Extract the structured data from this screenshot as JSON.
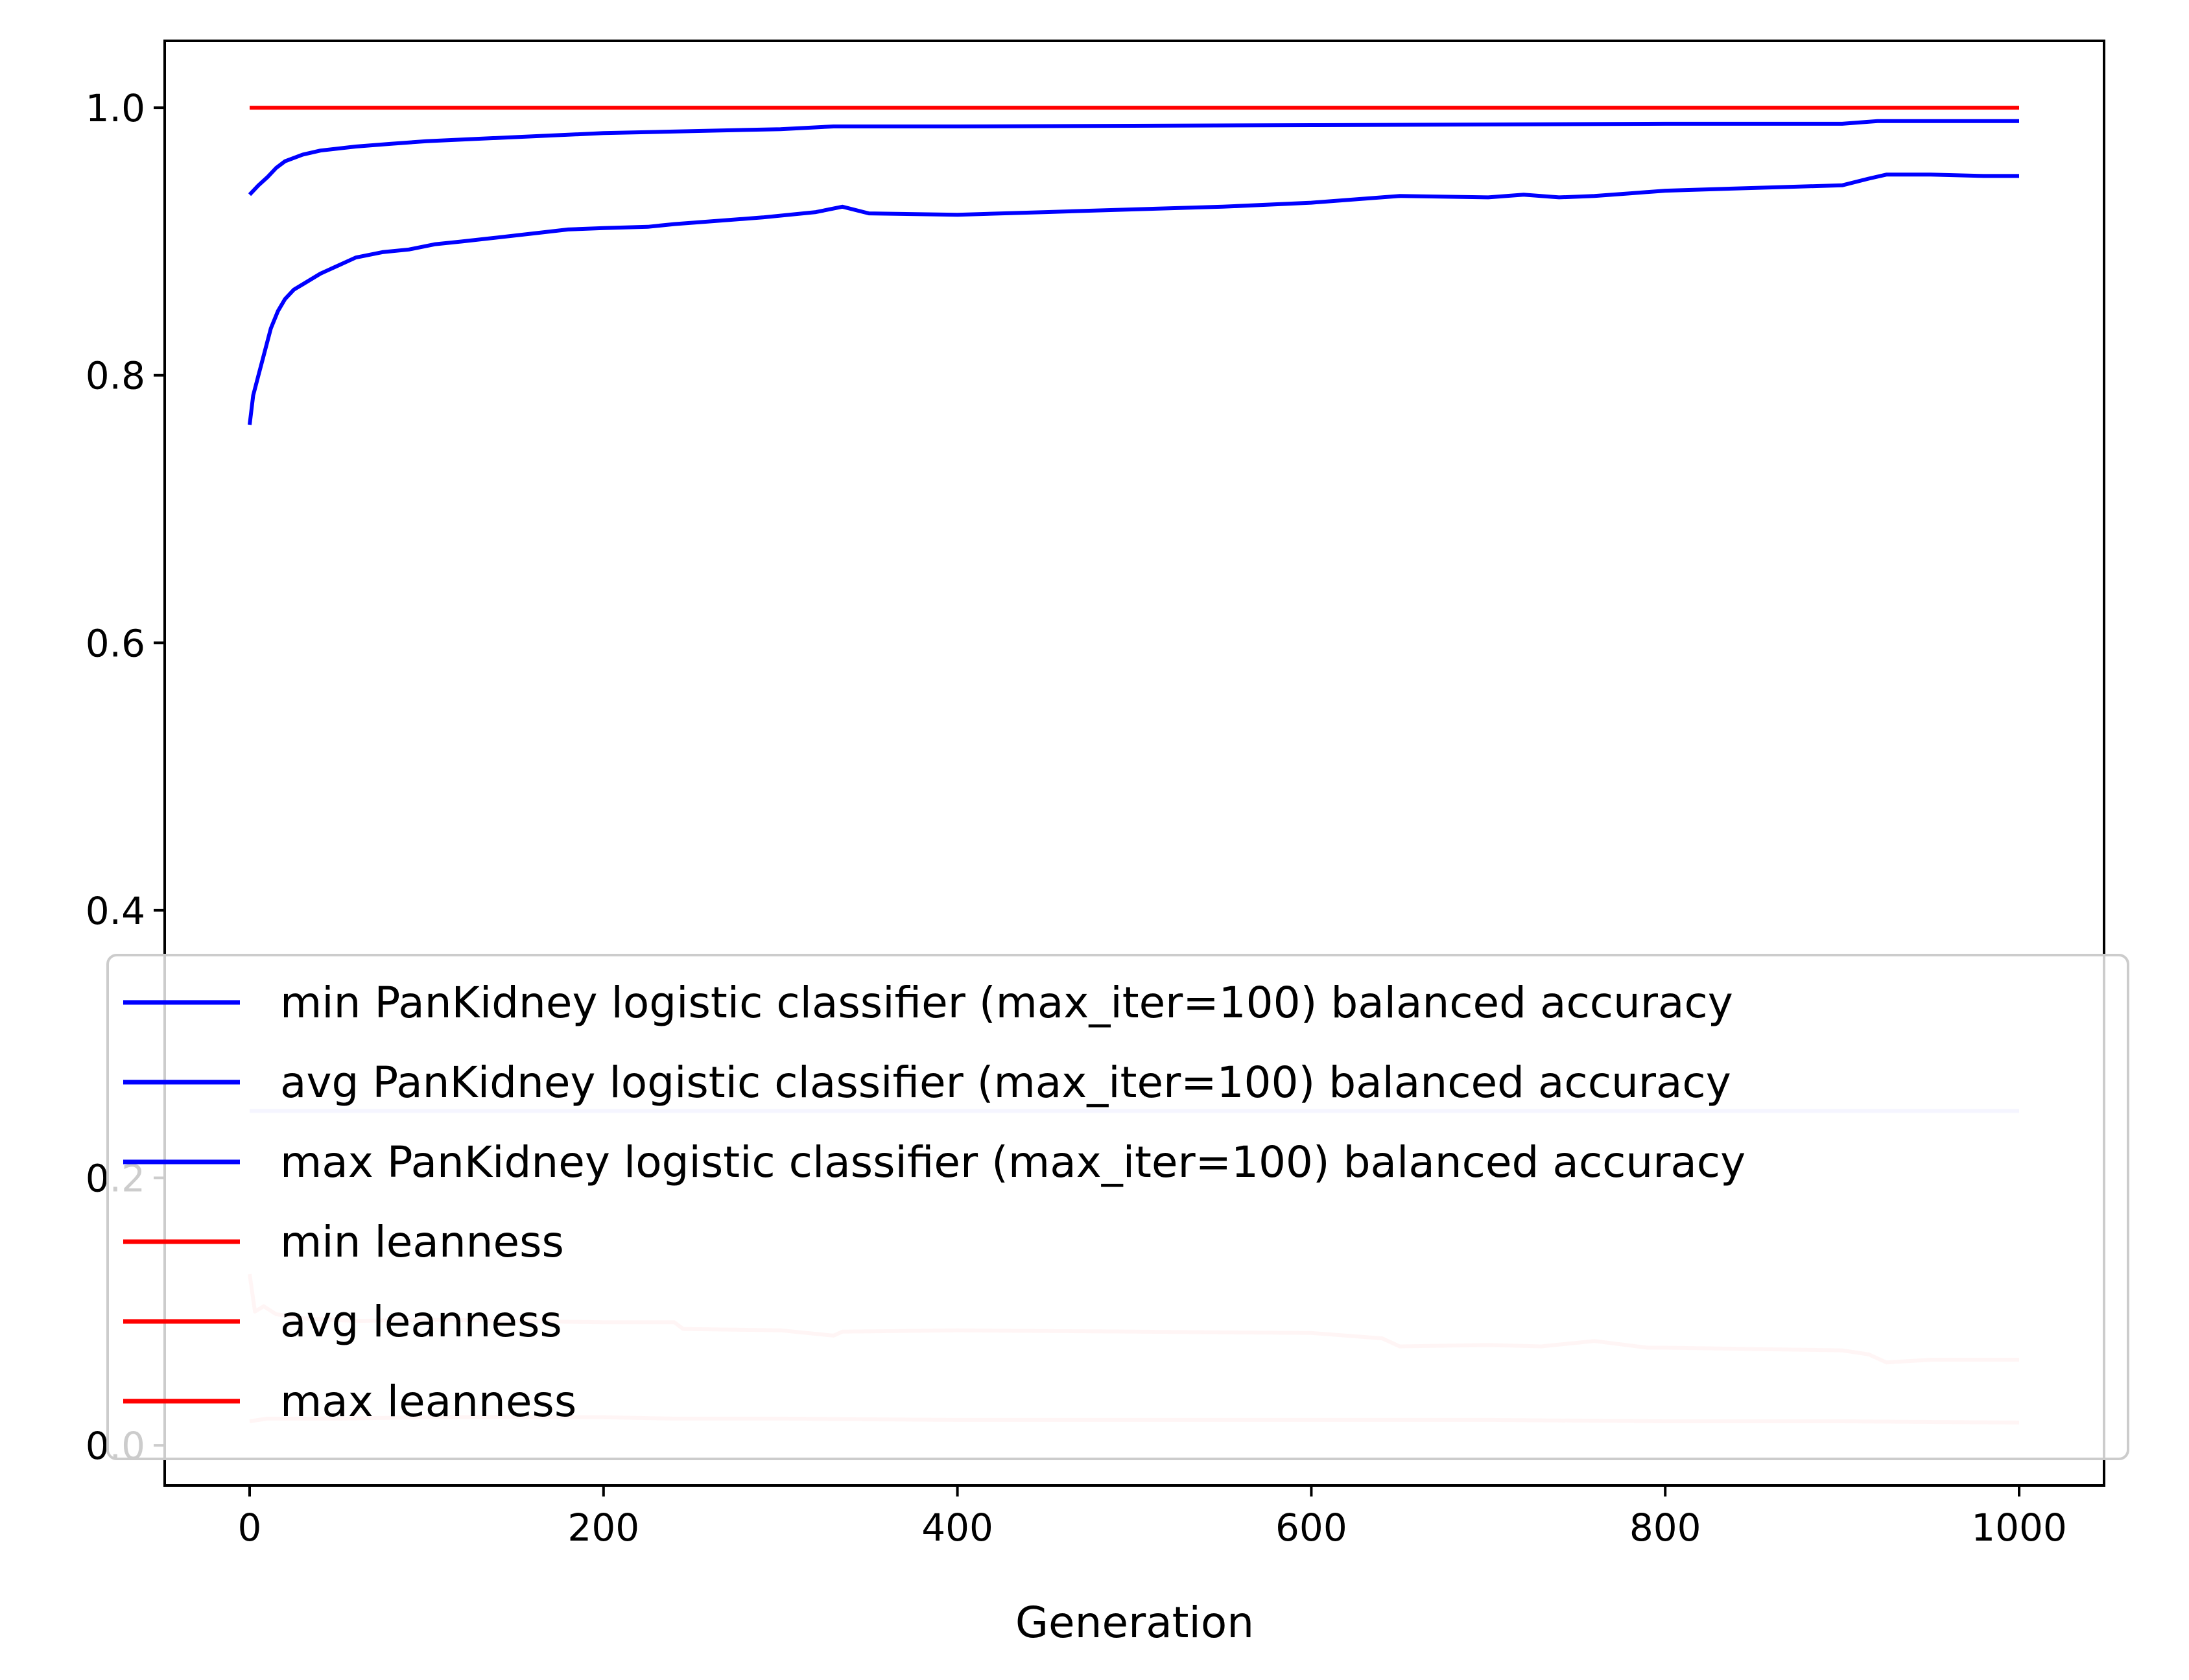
{
  "chart_data": {
    "type": "line",
    "title": "",
    "xlabel": "Generation",
    "ylabel": "",
    "xlim": [
      -48,
      1048
    ],
    "ylim": [
      -0.03,
      1.05
    ],
    "x_ticks": [
      0,
      200,
      400,
      600,
      800,
      1000
    ],
    "x_tick_labels": [
      "0",
      "200",
      "400",
      "600",
      "800",
      "1000"
    ],
    "y_ticks": [
      0.0,
      0.2,
      0.4,
      0.6,
      0.8,
      1.0
    ],
    "y_tick_labels": [
      "0.0",
      "0.2",
      "0.4",
      "0.6",
      "0.8",
      "1.0"
    ],
    "grid": false,
    "legend_position": "lower center",
    "series": [
      {
        "name": "min PanKidney logistic classifier (max_iter=100) balanced accuracy",
        "color": "#0000ff",
        "opacity": 0.2,
        "x": [
          0,
          1000
        ],
        "y": [
          0.25,
          0.25
        ]
      },
      {
        "name": "avg PanKidney logistic classifier (max_iter=100) balanced accuracy",
        "color": "#0000ff",
        "opacity": 1,
        "x": [
          0,
          2,
          5,
          8,
          12,
          16,
          20,
          25,
          30,
          40,
          50,
          60,
          75,
          90,
          105,
          120,
          140,
          160,
          180,
          200,
          225,
          240,
          260,
          290,
          320,
          335,
          350,
          400,
          450,
          500,
          550,
          600,
          650,
          700,
          720,
          740,
          760,
          780,
          800,
          850,
          900,
          915,
          925,
          950,
          980,
          1000
        ],
        "y": [
          0.763,
          0.785,
          0.8,
          0.815,
          0.835,
          0.848,
          0.857,
          0.864,
          0.868,
          0.876,
          0.882,
          0.888,
          0.892,
          0.894,
          0.898,
          0.9,
          0.903,
          0.906,
          0.909,
          0.91,
          0.911,
          0.913,
          0.915,
          0.918,
          0.922,
          0.926,
          0.921,
          0.92,
          0.922,
          0.924,
          0.926,
          0.929,
          0.934,
          0.933,
          0.935,
          0.933,
          0.934,
          0.936,
          0.938,
          0.94,
          0.942,
          0.947,
          0.95,
          0.95,
          0.949,
          0.949
        ]
      },
      {
        "name": "max PanKidney logistic classifier (max_iter=100) balanced accuracy",
        "color": "#0000ff",
        "opacity": 1,
        "x": [
          0,
          5,
          10,
          15,
          20,
          30,
          40,
          60,
          80,
          100,
          150,
          200,
          300,
          330,
          400,
          600,
          800,
          900,
          920,
          1000
        ],
        "y": [
          0.935,
          0.942,
          0.948,
          0.955,
          0.96,
          0.965,
          0.968,
          0.971,
          0.973,
          0.975,
          0.978,
          0.981,
          0.984,
          0.986,
          0.986,
          0.987,
          0.988,
          0.988,
          0.99,
          0.99
        ]
      },
      {
        "name": "min leanness",
        "color": "#ff0000",
        "opacity": 0.2,
        "x": [
          0,
          10,
          50,
          100,
          200,
          240,
          300,
          400,
          500,
          600,
          700,
          800,
          900,
          1000
        ],
        "y": [
          0.018,
          0.02,
          0.02,
          0.021,
          0.021,
          0.02,
          0.02,
          0.019,
          0.019,
          0.019,
          0.019,
          0.018,
          0.018,
          0.017
        ]
      },
      {
        "name": "avg leanness",
        "color": "#ff0000",
        "opacity": 0.2,
        "x": [
          0,
          3,
          8,
          15,
          30,
          60,
          100,
          150,
          200,
          240,
          245,
          300,
          330,
          335,
          400,
          500,
          600,
          640,
          650,
          700,
          730,
          760,
          790,
          800,
          850,
          900,
          915,
          925,
          950,
          1000
        ],
        "y": [
          0.128,
          0.1,
          0.104,
          0.098,
          0.095,
          0.093,
          0.094,
          0.093,
          0.092,
          0.092,
          0.087,
          0.086,
          0.082,
          0.085,
          0.086,
          0.085,
          0.084,
          0.08,
          0.074,
          0.075,
          0.074,
          0.078,
          0.073,
          0.073,
          0.072,
          0.071,
          0.068,
          0.062,
          0.064,
          0.064
        ]
      },
      {
        "name": "max leanness",
        "color": "#ff0000",
        "opacity": 1,
        "x": [
          0,
          1000
        ],
        "y": [
          1.0,
          1.0
        ]
      }
    ]
  }
}
